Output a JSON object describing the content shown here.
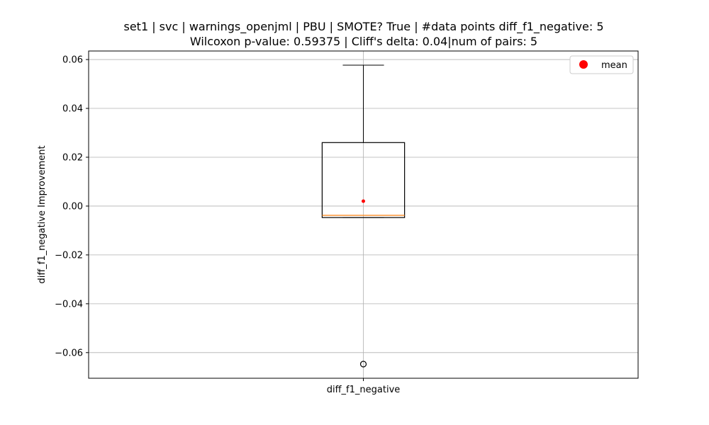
{
  "chart_data": {
    "type": "box",
    "title_line1": "set1 | svc | warnings_openjml | PBU | SMOTE? True | #data points diff_f1_negative: 5",
    "title_line2": "Wilcoxon p-value: 0.59375 | Cliff's delta: 0.04|num of pairs: 5",
    "xlabel": "",
    "ylabel": "diff_f1_negative Improvement",
    "categories": [
      "diff_f1_negative"
    ],
    "ylim": [
      -0.0705,
      0.0635
    ],
    "yticks": [
      -0.06,
      -0.04,
      -0.02,
      0.0,
      0.02,
      0.04,
      0.06
    ],
    "ytick_labels": [
      "−0.06",
      "−0.04",
      "−0.02",
      "0.00",
      "0.02",
      "0.04",
      "0.06"
    ],
    "grid": true,
    "legend": {
      "position": "top-right",
      "entries": [
        {
          "label": "mean",
          "color": "#ff0000"
        }
      ]
    },
    "boxes": [
      {
        "name": "diff_f1_negative",
        "whisker_low": -0.0047,
        "q1": -0.0047,
        "median": -0.0038,
        "q3": 0.026,
        "whisker_high": 0.0577,
        "mean": 0.002,
        "outliers": [
          -0.0647
        ]
      }
    ],
    "colors": {
      "median": "#ff7f0e",
      "mean": "#ff0000",
      "box": "#000000",
      "grid": "#b0b0b0"
    }
  }
}
